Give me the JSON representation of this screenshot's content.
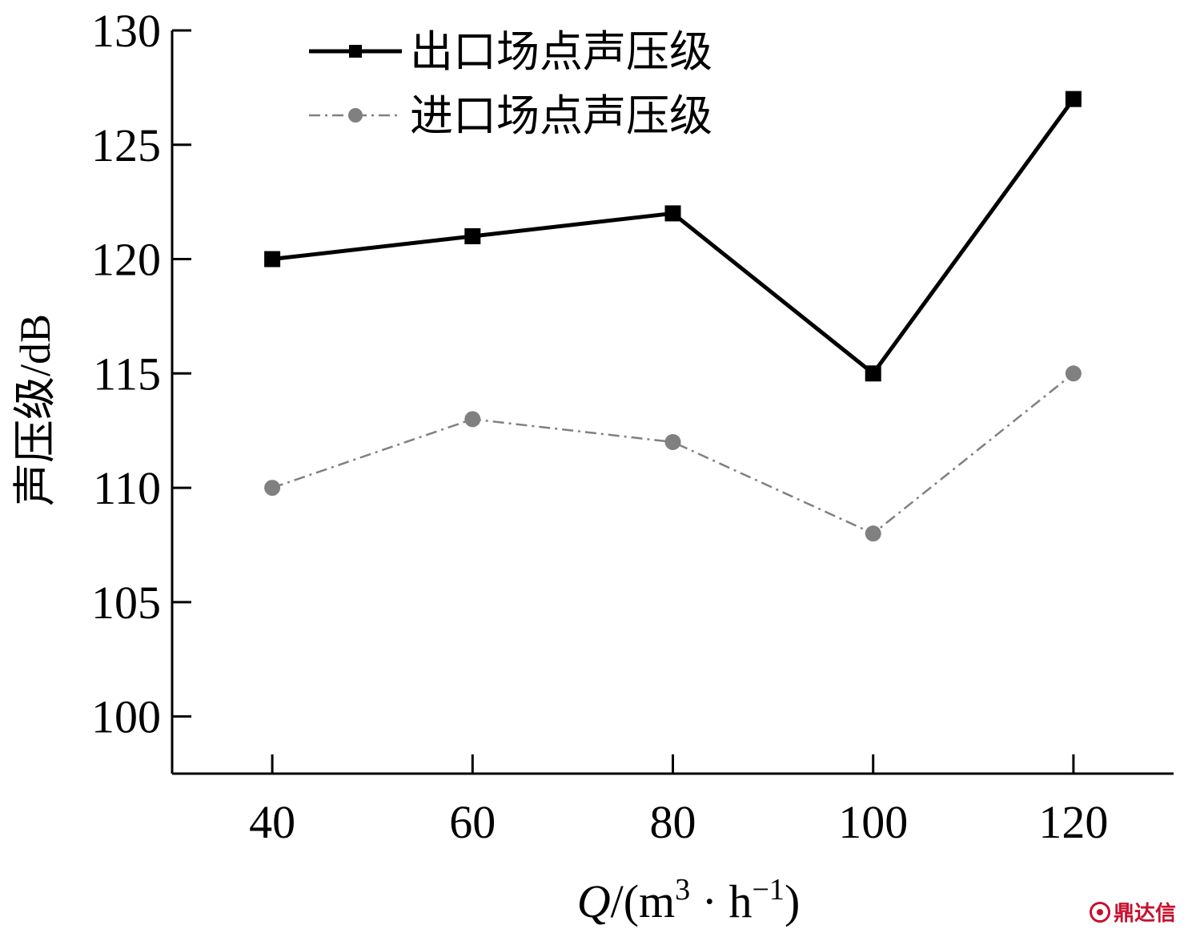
{
  "chart_data": {
    "type": "line",
    "x": [
      40,
      60,
      80,
      100,
      120
    ],
    "series": [
      {
        "name": "出口场点声压级",
        "values": [
          120,
          121,
          122,
          115,
          127
        ],
        "color": "#000000",
        "marker": "square",
        "line_style": "solid"
      },
      {
        "name": "进口场点声压级",
        "values": [
          110,
          113,
          112,
          108,
          115
        ],
        "color": "#808080",
        "marker": "circle",
        "line_style": "dash-dot"
      }
    ],
    "ylabel": "声压级/dB",
    "xlabel_var": "Q",
    "xlabel_rest": "/(m",
    "xlabel_sup1": "3",
    "xlabel_mid": " · h",
    "xlabel_sup2": "−1",
    "xlabel_end": ")",
    "xlim": [
      30,
      130
    ],
    "ylim": [
      97.5,
      130
    ],
    "x_ticks": [
      40,
      60,
      80,
      100,
      120
    ],
    "y_ticks": [
      100,
      105,
      110,
      115,
      120,
      125,
      130
    ],
    "legend_position": "top-left",
    "grid": false
  },
  "watermark": {
    "text": "鼎达信"
  }
}
